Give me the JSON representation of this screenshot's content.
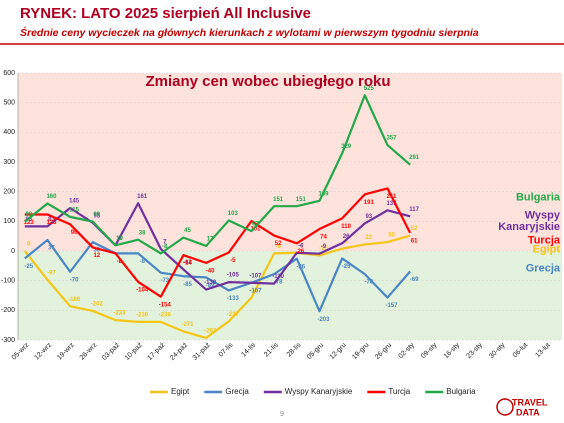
{
  "chart_data": {
    "type": "line",
    "title": "RYNEK: LATO 2025 sierpień All Inclusive",
    "subtitle": "Średnie ceny wycieczek na głównych kierunkach z wylotami w pierwszym tygodniu sierpnia",
    "chart_title": "Zmiany cen wobec ubiegłego roku",
    "categories": [
      "05-wrz",
      "12-wrz",
      "19-wrz",
      "26-wrz",
      "03-paź",
      "10-paź",
      "17-paź",
      "24-paź",
      "31-paź",
      "07-lis",
      "14-lis",
      "21-lis",
      "28-lis",
      "05-gru",
      "12-gru",
      "19-gru",
      "26-gru",
      "02-sty",
      "09-sty",
      "16-sty",
      "23-sty",
      "30-sty",
      "06-lut",
      "13-lut"
    ],
    "series": [
      {
        "name": "Egipt",
        "color": "#f5c518",
        "values": [
          0,
          -97,
          -186,
          -202,
          -233,
          -239,
          -239,
          -271,
          -293,
          -237,
          -157,
          -8,
          -6,
          -15,
          8,
          22,
          30,
          52,
          null,
          null,
          null,
          null,
          null,
          null
        ]
      },
      {
        "name": "Grecja",
        "color": "#4a86c5",
        "values": [
          -25,
          37,
          -70,
          30,
          -8,
          -8,
          -73,
          -85,
          -89,
          -133,
          -107,
          -78,
          -26,
          -203,
          -25,
          -78,
          -157,
          -69,
          null,
          null,
          null,
          null,
          null,
          null
        ]
      },
      {
        "name": "Wyspy Kanaryjskie",
        "color": "#7030a0",
        "values": [
          83,
          83,
          145,
          95,
          19,
          161,
          7,
          -62,
          -130,
          -105,
          -107,
          -110,
          -6,
          -9,
          26,
          93,
          137,
          117,
          null,
          null,
          null,
          null,
          null,
          null
        ]
      },
      {
        "name": "Turcja",
        "color": "#ff0000",
        "values": [
          123,
          123,
          90,
          12,
          -8,
          -104,
          -154,
          -14,
          -40,
          -5,
          101,
          52,
          26,
          74,
          110,
          191,
          211,
          61,
          null,
          null,
          null,
          null,
          null,
          null
        ]
      },
      {
        "name": "Bulgaria",
        "color": "#22a84a",
        "values": [
          99,
          160,
          115,
          99,
          19,
          38,
          -8,
          45,
          17,
          103,
          67,
          151,
          151,
          169,
          329,
          525,
          357,
          291,
          null,
          null,
          null,
          null,
          null,
          null
        ]
      }
    ],
    "annotations": [
      {
        "text": "Bulgaria",
        "color": "#22a84a",
        "value": 180
      },
      {
        "text": "Wyspy",
        "color": "#7030a0",
        "value": 120
      },
      {
        "text": "Kanaryjskie",
        "color": "#7030a0",
        "value": 80
      },
      {
        "text": "Turcja",
        "color": "#ff0000",
        "value": 35
      },
      {
        "text": "Egipt",
        "color": "#f5c518",
        "value": 5
      },
      {
        "text": "Grecja",
        "color": "#4a86c5",
        "value": -60
      }
    ],
    "ylim": [
      -300,
      600
    ],
    "yticks": [
      -300,
      -200,
      -100,
      0,
      100,
      200,
      300,
      400,
      500,
      600
    ],
    "page_number": "9",
    "logo": [
      "TRAVEL",
      "DATA"
    ]
  }
}
